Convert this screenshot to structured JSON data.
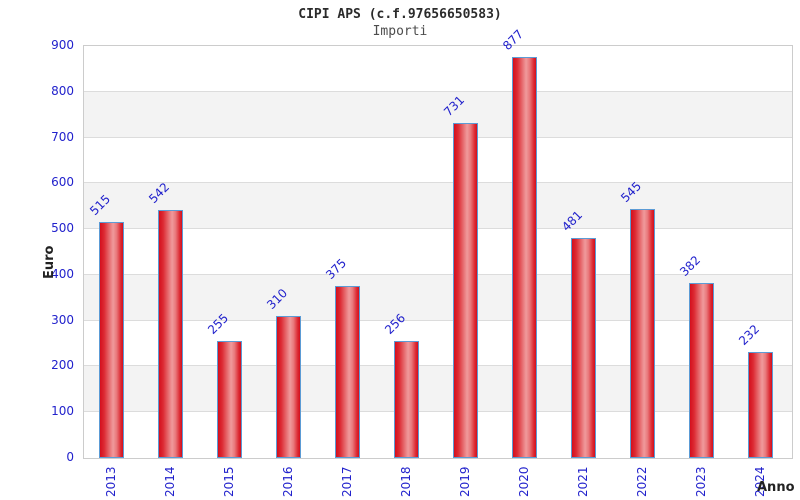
{
  "chart_data": {
    "type": "bar",
    "title": "CIPI APS (c.f.97656650583)",
    "subtitle": "Importi",
    "xlabel": "Anno",
    "ylabel": "Euro",
    "categories": [
      "2013",
      "2014",
      "2015",
      "2016",
      "2017",
      "2018",
      "2019",
      "2020",
      "2021",
      "2022",
      "2023",
      "2024"
    ],
    "values": [
      515,
      542,
      255,
      310,
      375,
      256,
      731,
      877,
      481,
      545,
      382,
      232
    ],
    "ylim": [
      0,
      900
    ],
    "ytick_interval": 100,
    "ytick_labels": [
      "0",
      "100",
      "200",
      "300",
      "400",
      "500",
      "600",
      "700",
      "800",
      "900"
    ],
    "grid": "horizontal-lines-with-alternating-bands",
    "legend": "none",
    "colors": {
      "bar_fill_edge": "#d40f1d",
      "bar_fill_highlight": "#f09a9c",
      "bar_border": "#5b9bd5",
      "tick_text": "#2222cc",
      "value_label_text": "#2222cc",
      "band_gray": "#f3f3f3",
      "gridline": "#dcdcdc",
      "plot_border": "#cccccc",
      "title_text": "#2b2b2b",
      "subtitle_text": "#4d4d4d",
      "axis_title_text": "#222222"
    }
  }
}
